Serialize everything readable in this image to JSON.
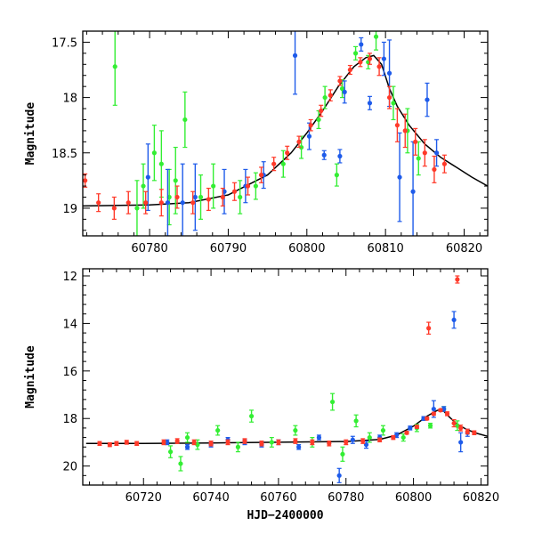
{
  "chart_data": [
    {
      "type": "scatter",
      "title": "",
      "xlabel": "",
      "ylabel": "Magnitude",
      "xlim": [
        60771.5,
        60823
      ],
      "ylim": [
        19.25,
        17.4
      ],
      "y_inverted": true,
      "x_ticks": [
        60780,
        60790,
        60800,
        60810,
        60820
      ],
      "y_ticks": [
        17.5,
        18,
        18.5,
        19
      ],
      "y_tick_labels": [
        "17.5",
        "18",
        "18.5",
        "19"
      ],
      "grid": false,
      "series": [
        {
          "color": "#33ee33",
          "points": [
            [
              60775.6,
              17.72,
              0.35
            ],
            [
              60778.4,
              19.0,
              0.25
            ],
            [
              60779.2,
              18.8,
              0.2
            ],
            [
              60780.6,
              18.5,
              0.25
            ],
            [
              60781.5,
              18.6,
              0.3
            ],
            [
              60782.5,
              18.9,
              0.25
            ],
            [
              60783.3,
              18.75,
              0.3
            ],
            [
              60784.5,
              18.2,
              0.25
            ],
            [
              60786.5,
              18.9,
              0.2
            ],
            [
              60788.1,
              18.8,
              0.2
            ],
            [
              60791.5,
              18.9,
              0.15
            ],
            [
              60793.5,
              18.8,
              0.12
            ],
            [
              60797.0,
              18.6,
              0.12
            ],
            [
              60799.3,
              18.45,
              0.1
            ],
            [
              60801.5,
              18.2,
              0.08
            ],
            [
              60802.3,
              18.0,
              0.1
            ],
            [
              60803.8,
              18.7,
              0.1
            ],
            [
              60804.5,
              17.92,
              0.08
            ],
            [
              60806.2,
              17.6,
              0.06
            ],
            [
              60807.8,
              17.68,
              0.06
            ],
            [
              60808.8,
              17.45,
              0.12
            ],
            [
              60811.0,
              18.05,
              0.15
            ],
            [
              60812.8,
              18.3,
              0.2
            ],
            [
              60814.2,
              18.55,
              0.15
            ]
          ]
        },
        {
          "color": "#1e5bea",
          "points": [
            [
              60779.8,
              18.72,
              0.3
            ],
            [
              60782.3,
              18.95,
              0.3
            ],
            [
              60784.2,
              18.95,
              0.35
            ],
            [
              60785.8,
              18.9,
              0.3
            ],
            [
              60789.5,
              18.85,
              0.2
            ],
            [
              60792.2,
              18.8,
              0.15
            ],
            [
              60794.5,
              18.7,
              0.12
            ],
            [
              60798.5,
              17.62,
              0.35
            ],
            [
              60800.3,
              18.35,
              0.12
            ],
            [
              60802.2,
              18.52,
              0.04
            ],
            [
              60804.2,
              18.53,
              0.06
            ],
            [
              60804.8,
              17.95,
              0.1
            ],
            [
              60806.9,
              17.52,
              0.06
            ],
            [
              60808.0,
              18.05,
              0.06
            ],
            [
              60809.8,
              17.65,
              0.15
            ],
            [
              60810.5,
              17.78,
              0.3
            ],
            [
              60811.8,
              18.72,
              0.4
            ],
            [
              60813.5,
              18.85,
              0.45
            ],
            [
              60815.3,
              18.02,
              0.15
            ],
            [
              60816.5,
              18.5,
              0.12
            ]
          ]
        },
        {
          "color": "#ff3a2a",
          "points": [
            [
              60771.8,
              18.75,
              0.06
            ],
            [
              60773.5,
              18.95,
              0.08
            ],
            [
              60775.5,
              19.0,
              0.1
            ],
            [
              60777.3,
              18.95,
              0.1
            ],
            [
              60779.5,
              18.95,
              0.1
            ],
            [
              60781.5,
              18.95,
              0.12
            ],
            [
              60783.5,
              18.9,
              0.1
            ],
            [
              60785.5,
              18.95,
              0.1
            ],
            [
              60787.5,
              18.92,
              0.1
            ],
            [
              60789.3,
              18.9,
              0.08
            ],
            [
              60790.8,
              18.85,
              0.08
            ],
            [
              60792.5,
              18.8,
              0.08
            ],
            [
              60794.2,
              18.7,
              0.07
            ],
            [
              60795.8,
              18.6,
              0.06
            ],
            [
              60797.5,
              18.5,
              0.06
            ],
            [
              60799.0,
              18.4,
              0.05
            ],
            [
              60800.5,
              18.25,
              0.05
            ],
            [
              60801.8,
              18.12,
              0.05
            ],
            [
              60803.0,
              17.98,
              0.05
            ],
            [
              60804.2,
              17.85,
              0.04
            ],
            [
              60805.5,
              17.75,
              0.04
            ],
            [
              60806.8,
              17.68,
              0.04
            ],
            [
              60808.0,
              17.65,
              0.05
            ],
            [
              60809.2,
              17.72,
              0.08
            ],
            [
              60810.5,
              18.0,
              0.1
            ],
            [
              60811.5,
              18.25,
              0.15
            ],
            [
              60812.5,
              18.3,
              0.15
            ],
            [
              60813.8,
              18.4,
              0.12
            ],
            [
              60815.0,
              18.5,
              0.12
            ],
            [
              60816.2,
              18.65,
              0.12
            ],
            [
              60817.5,
              18.6,
              0.08
            ]
          ]
        }
      ],
      "model_curve": {
        "color": "#000000",
        "points": [
          [
            60771.5,
            18.98
          ],
          [
            60780,
            18.97
          ],
          [
            60785,
            18.95
          ],
          [
            60790,
            18.88
          ],
          [
            60795,
            18.7
          ],
          [
            60798,
            18.5
          ],
          [
            60800,
            18.32
          ],
          [
            60802,
            18.12
          ],
          [
            60804,
            17.9
          ],
          [
            60806,
            17.72
          ],
          [
            60807.5,
            17.64
          ],
          [
            60808.5,
            17.62
          ],
          [
            60809.5,
            17.7
          ],
          [
            60810.5,
            17.92
          ],
          [
            60811.5,
            18.08
          ],
          [
            60813,
            18.25
          ],
          [
            60815,
            18.42
          ],
          [
            60817,
            18.54
          ],
          [
            60819,
            18.63
          ],
          [
            60821,
            18.72
          ],
          [
            60823,
            18.8
          ]
        ]
      }
    },
    {
      "type": "scatter",
      "title": "",
      "xlabel": "HJD−2400000",
      "ylabel": "Magnitude",
      "xlim": [
        60702,
        60822
      ],
      "ylim": [
        20.8,
        11.7
      ],
      "y_inverted": true,
      "x_ticks": [
        60720,
        60740,
        60760,
        60780,
        60800,
        60820
      ],
      "y_ticks": [
        12,
        14,
        16,
        18,
        20
      ],
      "y_tick_labels": [
        "12",
        "14",
        "16",
        "18",
        "20"
      ],
      "grid": false,
      "series": [
        {
          "color": "#33ee33",
          "points": [
            [
              60728,
              19.4,
              0.25
            ],
            [
              60731,
              19.9,
              0.3
            ],
            [
              60733,
              18.8,
              0.2
            ],
            [
              60736,
              19.1,
              0.2
            ],
            [
              60742,
              18.5,
              0.2
            ],
            [
              60748,
              19.2,
              0.2
            ],
            [
              60752,
              17.9,
              0.25
            ],
            [
              60758,
              19.0,
              0.2
            ],
            [
              60765,
              18.5,
              0.2
            ],
            [
              60770,
              19.0,
              0.2
            ],
            [
              60776,
              17.3,
              0.35
            ],
            [
              60779,
              19.5,
              0.3
            ],
            [
              60783,
              18.1,
              0.25
            ],
            [
              60787,
              18.8,
              0.2
            ],
            [
              60791,
              18.5,
              0.2
            ],
            [
              60797,
              18.8,
              0.15
            ],
            [
              60801,
              18.4,
              0.15
            ],
            [
              60805,
              18.3,
              0.1
            ],
            [
              60809,
              17.6,
              0.1
            ],
            [
              60813,
              18.3,
              0.2
            ]
          ]
        },
        {
          "color": "#1e5bea",
          "points": [
            [
              60727,
              19.0,
              0.1
            ],
            [
              60733,
              19.2,
              0.1
            ],
            [
              60740,
              19.1,
              0.1
            ],
            [
              60745,
              18.9,
              0.1
            ],
            [
              60750,
              19.0,
              0.1
            ],
            [
              60755,
              19.1,
              0.1
            ],
            [
              60760,
              19.0,
              0.1
            ],
            [
              60766,
              19.2,
              0.1
            ],
            [
              60772,
              18.8,
              0.1
            ],
            [
              60778,
              20.4,
              0.3
            ],
            [
              60782,
              18.9,
              0.15
            ],
            [
              60786,
              19.1,
              0.15
            ],
            [
              60790,
              18.8,
              0.1
            ],
            [
              60795,
              18.7,
              0.1
            ],
            [
              60799,
              18.4,
              0.08
            ],
            [
              60803,
              18.0,
              0.08
            ],
            [
              60806,
              17.6,
              0.35
            ],
            [
              60809,
              17.6,
              0.1
            ],
            [
              60812,
              13.85,
              0.35
            ],
            [
              60814,
              19.0,
              0.4
            ],
            [
              60816,
              18.6,
              0.15
            ]
          ]
        },
        {
          "color": "#ff3a2a",
          "points": [
            [
              60707,
              19.05,
              0.08
            ],
            [
              60710,
              19.1,
              0.08
            ],
            [
              60712,
              19.05,
              0.08
            ],
            [
              60715,
              19.0,
              0.08
            ],
            [
              60718,
              19.05,
              0.08
            ],
            [
              60726,
              19.0,
              0.1
            ],
            [
              60730,
              18.95,
              0.1
            ],
            [
              60735,
              19.0,
              0.1
            ],
            [
              60740,
              19.05,
              0.1
            ],
            [
              60745,
              19.0,
              0.1
            ],
            [
              60750,
              18.95,
              0.1
            ],
            [
              60755,
              19.05,
              0.1
            ],
            [
              60760,
              19.0,
              0.1
            ],
            [
              60765,
              18.95,
              0.1
            ],
            [
              60770,
              19.0,
              0.1
            ],
            [
              60775,
              19.05,
              0.1
            ],
            [
              60780,
              19.0,
              0.1
            ],
            [
              60785,
              18.95,
              0.1
            ],
            [
              60790,
              18.9,
              0.08
            ],
            [
              60794,
              18.8,
              0.08
            ],
            [
              60798,
              18.6,
              0.06
            ],
            [
              60801,
              18.35,
              0.06
            ],
            [
              60804,
              18.0,
              0.06
            ],
            [
              60806,
              17.8,
              0.06
            ],
            [
              60808,
              17.65,
              0.05
            ],
            [
              60810,
              17.8,
              0.08
            ],
            [
              60804.5,
              14.2,
              0.25
            ],
            [
              60813,
              12.15,
              0.15
            ],
            [
              60812,
              18.2,
              0.15
            ],
            [
              60814,
              18.4,
              0.12
            ],
            [
              60816,
              18.55,
              0.1
            ],
            [
              60818,
              18.6,
              0.08
            ]
          ]
        }
      ],
      "model_curve": {
        "color": "#000000",
        "points": [
          [
            60703,
            19.05
          ],
          [
            60720,
            19.05
          ],
          [
            60740,
            19.03
          ],
          [
            60760,
            19.0
          ],
          [
            60780,
            18.97
          ],
          [
            60790,
            18.88
          ],
          [
            60795,
            18.7
          ],
          [
            60800,
            18.32
          ],
          [
            60804,
            17.9
          ],
          [
            60807,
            17.66
          ],
          [
            60808.5,
            17.62
          ],
          [
            60810.5,
            17.92
          ],
          [
            60813,
            18.25
          ],
          [
            60816,
            18.48
          ],
          [
            60819,
            18.63
          ],
          [
            60822,
            18.75
          ]
        ]
      }
    }
  ]
}
